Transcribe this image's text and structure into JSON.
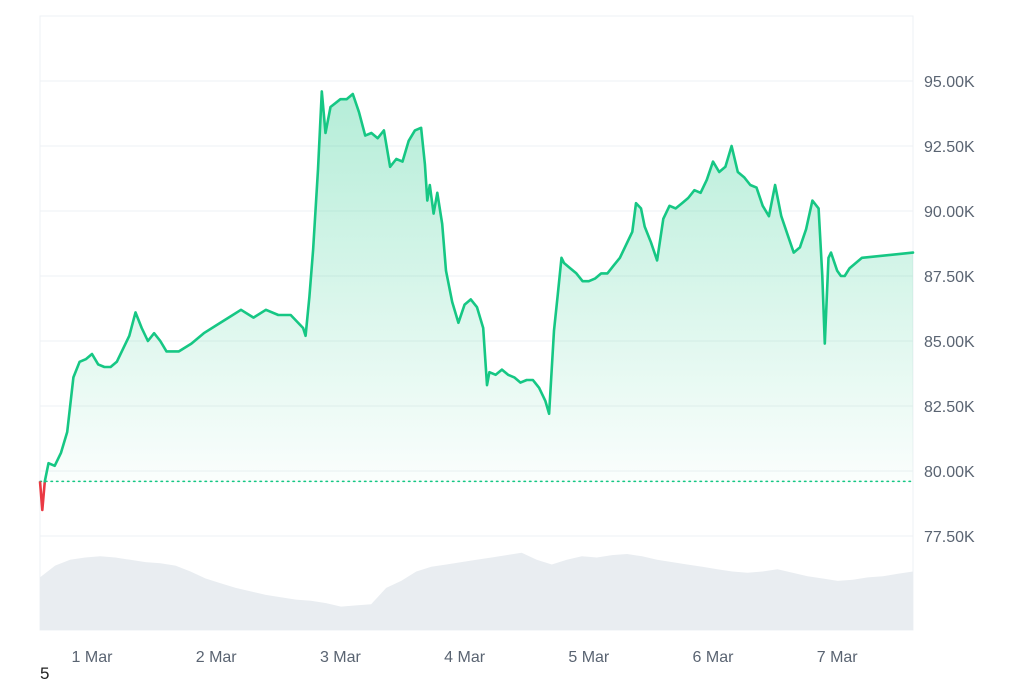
{
  "corner_label": "5",
  "colors": {
    "up_line": "#16c784",
    "down_line": "#ea3943",
    "area_top": "#16c784",
    "volume_fill": "#e9edf1",
    "grid": "#eef1f4",
    "baseline_dots": "#16c784",
    "tick_text": "#5a6472"
  },
  "chart_data": {
    "type": "area",
    "title": "",
    "xlabel": "",
    "ylabel": "",
    "ylim": [
      75000,
      97500
    ],
    "y_ticks": [
      77500,
      80000,
      82500,
      85000,
      87500,
      90000,
      92500,
      95000
    ],
    "y_tick_labels": [
      "77.50K",
      "80.00K",
      "82.50K",
      "85.00K",
      "87.50K",
      "90.00K",
      "92.50K",
      "95.00K"
    ],
    "x_ticks": [
      1,
      2,
      3,
      4,
      5,
      6,
      7
    ],
    "x_tick_labels": [
      "1 Mar",
      "2 Mar",
      "3 Mar",
      "4 Mar",
      "5 Mar",
      "6 Mar",
      "7 Mar"
    ],
    "x_range": [
      0.55,
      7.6
    ],
    "baseline": 79600,
    "grid": true,
    "series": [
      {
        "values": [
          [
            0.55,
            79600
          ],
          [
            0.6,
            78500
          ],
          [
            0.62,
            79600
          ],
          [
            0.65,
            80300
          ],
          [
            0.7,
            80200
          ],
          [
            0.75,
            80700
          ],
          [
            0.8,
            81500
          ],
          [
            0.85,
            83600
          ],
          [
            0.9,
            84200
          ],
          [
            0.95,
            84300
          ],
          [
            1.0,
            84500
          ],
          [
            1.05,
            84100
          ],
          [
            1.1,
            84000
          ],
          [
            1.15,
            84000
          ],
          [
            1.2,
            84200
          ],
          [
            1.3,
            85200
          ],
          [
            1.35,
            86100
          ],
          [
            1.4,
            85500
          ],
          [
            1.45,
            85000
          ],
          [
            1.5,
            85300
          ],
          [
            1.55,
            85000
          ],
          [
            1.6,
            84600
          ],
          [
            1.7,
            84600
          ],
          [
            1.8,
            84900
          ],
          [
            1.9,
            85300
          ],
          [
            2.0,
            85600
          ],
          [
            2.1,
            85900
          ],
          [
            2.2,
            86200
          ],
          [
            2.3,
            85900
          ],
          [
            2.4,
            86200
          ],
          [
            2.5,
            86000
          ],
          [
            2.6,
            86000
          ],
          [
            2.7,
            85500
          ],
          [
            2.72,
            85200
          ],
          [
            2.75,
            86700
          ],
          [
            2.78,
            88500
          ],
          [
            2.82,
            91600
          ],
          [
            2.85,
            94600
          ],
          [
            2.88,
            93000
          ],
          [
            2.92,
            94000
          ],
          [
            3.0,
            94300
          ],
          [
            3.05,
            94300
          ],
          [
            3.1,
            94500
          ],
          [
            3.15,
            93800
          ],
          [
            3.2,
            92900
          ],
          [
            3.25,
            93000
          ],
          [
            3.3,
            92800
          ],
          [
            3.35,
            93100
          ],
          [
            3.4,
            91700
          ],
          [
            3.45,
            92000
          ],
          [
            3.5,
            91900
          ],
          [
            3.55,
            92700
          ],
          [
            3.6,
            93100
          ],
          [
            3.65,
            93200
          ],
          [
            3.68,
            91800
          ],
          [
            3.7,
            90400
          ],
          [
            3.72,
            91000
          ],
          [
            3.75,
            89900
          ],
          [
            3.78,
            90700
          ],
          [
            3.82,
            89500
          ],
          [
            3.85,
            87700
          ],
          [
            3.9,
            86500
          ],
          [
            3.95,
            85700
          ],
          [
            4.0,
            86400
          ],
          [
            4.05,
            86600
          ],
          [
            4.1,
            86300
          ],
          [
            4.15,
            85500
          ],
          [
            4.18,
            83300
          ],
          [
            4.2,
            83800
          ],
          [
            4.25,
            83700
          ],
          [
            4.3,
            83900
          ],
          [
            4.35,
            83700
          ],
          [
            4.4,
            83600
          ],
          [
            4.45,
            83400
          ],
          [
            4.5,
            83500
          ],
          [
            4.55,
            83500
          ],
          [
            4.6,
            83200
          ],
          [
            4.65,
            82700
          ],
          [
            4.68,
            82200
          ],
          [
            4.72,
            85400
          ],
          [
            4.75,
            86800
          ],
          [
            4.78,
            88200
          ],
          [
            4.8,
            88000
          ],
          [
            4.85,
            87800
          ],
          [
            4.9,
            87600
          ],
          [
            4.95,
            87300
          ],
          [
            5.0,
            87300
          ],
          [
            5.05,
            87400
          ],
          [
            5.1,
            87600
          ],
          [
            5.15,
            87600
          ],
          [
            5.2,
            87900
          ],
          [
            5.25,
            88200
          ],
          [
            5.3,
            88700
          ],
          [
            5.35,
            89200
          ],
          [
            5.38,
            90300
          ],
          [
            5.42,
            90100
          ],
          [
            5.45,
            89400
          ],
          [
            5.5,
            88800
          ],
          [
            5.55,
            88100
          ],
          [
            5.6,
            89700
          ],
          [
            5.65,
            90200
          ],
          [
            5.7,
            90100
          ],
          [
            5.75,
            90300
          ],
          [
            5.8,
            90500
          ],
          [
            5.85,
            90800
          ],
          [
            5.9,
            90700
          ],
          [
            5.95,
            91200
          ],
          [
            6.0,
            91900
          ],
          [
            6.05,
            91500
          ],
          [
            6.1,
            91700
          ],
          [
            6.15,
            92500
          ],
          [
            6.2,
            91500
          ],
          [
            6.25,
            91300
          ],
          [
            6.3,
            91000
          ],
          [
            6.35,
            90900
          ],
          [
            6.4,
            90200
          ],
          [
            6.45,
            89800
          ],
          [
            6.5,
            91000
          ],
          [
            6.55,
            89800
          ],
          [
            6.6,
            89100
          ],
          [
            6.65,
            88400
          ],
          [
            6.7,
            88600
          ],
          [
            6.75,
            89300
          ],
          [
            6.8,
            90400
          ],
          [
            6.85,
            90100
          ],
          [
            6.88,
            87500
          ],
          [
            6.9,
            84900
          ],
          [
            6.93,
            88200
          ],
          [
            6.95,
            88400
          ],
          [
            7.0,
            87700
          ],
          [
            7.03,
            87500
          ],
          [
            7.06,
            87500
          ],
          [
            7.1,
            87800
          ],
          [
            7.15,
            88000
          ],
          [
            7.2,
            88200
          ],
          [
            7.6,
            88400
          ]
        ]
      }
    ],
    "volume": [
      0.45,
      0.55,
      0.6,
      0.62,
      0.63,
      0.62,
      0.6,
      0.58,
      0.57,
      0.55,
      0.5,
      0.44,
      0.4,
      0.36,
      0.33,
      0.3,
      0.28,
      0.26,
      0.25,
      0.23,
      0.2,
      0.21,
      0.22,
      0.36,
      0.42,
      0.5,
      0.54,
      0.56,
      0.58,
      0.6,
      0.62,
      0.64,
      0.66,
      0.6,
      0.56,
      0.6,
      0.63,
      0.62,
      0.64,
      0.65,
      0.63,
      0.6,
      0.58,
      0.56,
      0.54,
      0.52,
      0.5,
      0.49,
      0.5,
      0.52,
      0.49,
      0.46,
      0.44,
      0.42,
      0.43,
      0.45,
      0.46,
      0.48,
      0.5
    ]
  }
}
